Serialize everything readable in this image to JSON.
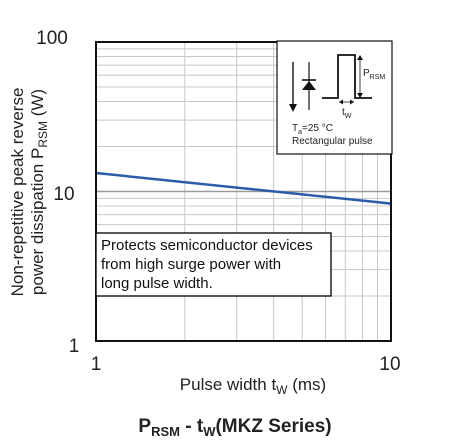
{
  "chart_data": {
    "type": "line",
    "x_scale": "log",
    "y_scale": "log",
    "xlim": [
      1,
      10
    ],
    "ylim": [
      1,
      100
    ],
    "x_ticks": [
      "1",
      "10"
    ],
    "y_ticks": [
      "1",
      "10",
      "100"
    ],
    "xlabel": {
      "main": "Pulse width t",
      "sub": "W",
      "unit": " (ms)"
    },
    "ylabel": {
      "line1": "Non-repetitive peak reverse",
      "line2": "power dissipation P",
      "sub": "RSM",
      "unit": " (W)"
    },
    "grid": true,
    "series": [
      {
        "x": [
          1,
          10
        ],
        "y": [
          13.3,
          8.3
        ],
        "color": "#2a5ca8"
      }
    ],
    "annotation": {
      "lines": [
        "Protects semiconductor devices",
        "from high surge power with",
        "long pulse width."
      ]
    },
    "inset": {
      "pulse_label": "P",
      "pulse_label_sub": "RSM",
      "width_label": "t",
      "width_label_sub": "W",
      "temp_main": "T",
      "temp_sub": "a",
      "temp_value": "=25 °C",
      "pulse_type": "Rectangular pulse"
    },
    "caption": {
      "p": "P",
      "p_sub": "RSM",
      "mid": " - t",
      "t_sub": "W",
      "series_name": "(MKZ Series)"
    }
  }
}
